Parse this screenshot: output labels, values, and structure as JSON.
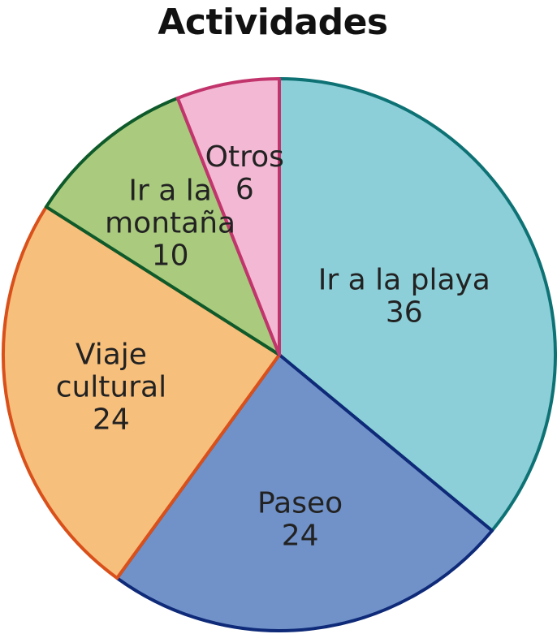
{
  "chart_data": {
    "type": "pie",
    "title": "Actividades",
    "start": "top",
    "direction": "clockwise",
    "legend": "none",
    "slices": [
      {
        "label": [
          "Ir a la playa"
        ],
        "value": 36,
        "value_label": "36",
        "fill": "#8ccfd8",
        "stroke": "#0e7275"
      },
      {
        "label": [
          "Paseo"
        ],
        "value": 24,
        "value_label": "24",
        "fill": "#7192c9",
        "stroke": "#0e2a78"
      },
      {
        "label": [
          "Viaje",
          "cultural"
        ],
        "value": 24,
        "value_label": "24",
        "fill": "#f7bf7c",
        "stroke": "#d9501a"
      },
      {
        "label": [
          "Ir a la",
          "montaña"
        ],
        "value": 10,
        "value_label": "10",
        "fill": "#aacb7e",
        "stroke": "#0f5a2a"
      },
      {
        "label": [
          "Otros"
        ],
        "value": 6,
        "value_label": "6",
        "fill": "#f3b9d4",
        "stroke": "#c2356c"
      }
    ]
  }
}
